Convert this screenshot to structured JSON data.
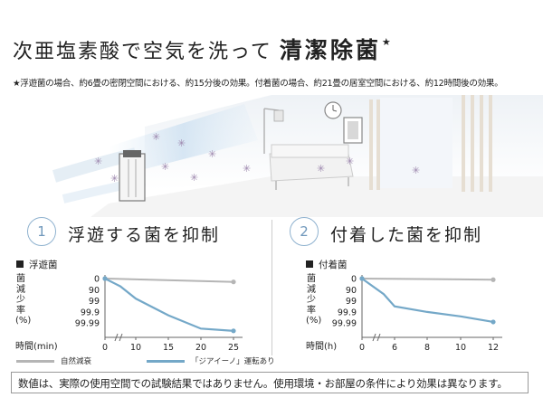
{
  "header": {
    "title_main": "次亜塩素酸で空気を洗って",
    "title_strong": "清潔除菌",
    "title_star": "★",
    "note": "★浮遊菌の場合、約6畳の密閉空間における、約15分後の効果。付着菌の場合、約21畳の居室空間における、約12時間後の効果。"
  },
  "sections": [
    {
      "number": "1",
      "title": "浮遊する菌を抑制"
    },
    {
      "number": "2",
      "title": "付着した菌を抑制"
    }
  ],
  "axis_labels": {
    "ylabel": "菌減少率(%)",
    "xlabel_left": "時間(min)",
    "xlabel_right": "時間(h)"
  },
  "legend": {
    "natural": "自然減衰",
    "device": "「ジアイーノ」運転あり",
    "natural_color": "#b5b5b5",
    "device_color": "#74a8c8"
  },
  "chart_data": [
    {
      "type": "line",
      "title": "浮遊菌",
      "xlabel": "時間(min)",
      "ylabel": "菌減少率(%)",
      "x_ticks": [
        "0",
        "10",
        "15",
        "20",
        "25"
      ],
      "y_ticks": [
        "0",
        "90",
        "99",
        "99.9",
        "99.99"
      ],
      "series": [
        {
          "name": "自然減衰",
          "x": [
            0,
            25
          ],
          "y": [
            0,
            0.3
          ]
        },
        {
          "name": "「ジアイーノ」運転あり",
          "x": [
            0,
            5,
            10,
            15,
            20,
            25
          ],
          "y": [
            0,
            0.7,
            1.8,
            3.3,
            4.5,
            4.7
          ]
        }
      ]
    },
    {
      "type": "line",
      "title": "付着菌",
      "xlabel": "時間(h)",
      "ylabel": "菌減少率(%)",
      "x_ticks": [
        "0",
        "6",
        "8",
        "10",
        "12"
      ],
      "y_ticks": [
        "0",
        "90",
        "99",
        "99.9",
        "99.99"
      ],
      "series": [
        {
          "name": "自然減衰",
          "x": [
            0,
            12
          ],
          "y": [
            0,
            0.1
          ]
        },
        {
          "name": "「ジアイーノ」運転あり",
          "x": [
            0,
            4,
            6,
            8,
            10,
            12
          ],
          "y": [
            0,
            1.4,
            2.5,
            3.0,
            3.4,
            3.9
          ]
        }
      ]
    }
  ],
  "footer": {
    "text": "数値は、実際の使用空間での試験結果ではありません。使用環境・お部屋の条件により効果は異なります。"
  }
}
